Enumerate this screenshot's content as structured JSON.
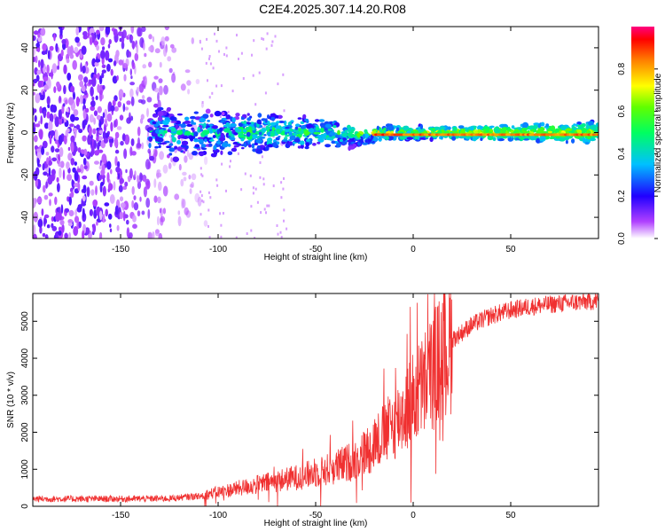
{
  "figure_title": "C2E4.2025.307.14.20.R08",
  "chart_data": [
    {
      "type": "heatmap",
      "title": "C2E4.2025.307.14.20.R08",
      "xlabel": "Height of straight line (km)",
      "ylabel": "Frequency (Hz)",
      "xlim": [
        -195,
        95
      ],
      "ylim": [
        -50,
        50
      ],
      "xticks": [
        -150,
        -100,
        -50,
        0,
        50
      ],
      "xtick_labels": [
        "-150",
        "-100",
        "-50",
        "0",
        "50"
      ],
      "yticks": [
        -40,
        -20,
        0,
        20,
        40
      ],
      "ytick_labels": [
        "-40",
        "-20",
        "0",
        "20",
        "40"
      ],
      "colorbar": {
        "label": "Normalized spectral amplitude",
        "range": [
          0,
          1
        ],
        "ticks": [
          0.0,
          0.2,
          0.4,
          0.6,
          0.8
        ],
        "tick_labels": [
          "0.0",
          "0.2",
          "0.4",
          "0.6",
          "0.8"
        ],
        "colormap": [
          "#ffffff",
          "#8b00ff",
          "#0000ff",
          "#00c8ff",
          "#00ff00",
          "#ffff00",
          "#ff8000",
          "#ff0000",
          "#ff0080"
        ]
      },
      "description": "Noise scattered at all frequencies for heights below about -100 km; energy concentrates near 0 Hz and grows to amplitude ~0.9 between about -30 km and 95 km."
    },
    {
      "type": "line",
      "xlabel": "Height of straight line (km)",
      "ylabel": "SNR (10 * v/v)",
      "xlim": [
        -195,
        95
      ],
      "ylim": [
        0,
        5750
      ],
      "xticks": [
        -150,
        -100,
        -50,
        0,
        50
      ],
      "xtick_labels": [
        "-150",
        "-100",
        "-50",
        "0",
        "50"
      ],
      "yticks": [
        0,
        1000,
        2000,
        3000,
        4000,
        5000
      ],
      "ytick_labels": [
        "0",
        "1000",
        "2000",
        "3000",
        "4000",
        "5000"
      ],
      "line_color": "#f03030",
      "series": [
        {
          "name": "SNR",
          "x": [
            -195,
            -150,
            -125,
            -110,
            -100,
            -90,
            -80,
            -70,
            -60,
            -50,
            -40,
            -35,
            -30,
            -25,
            -20,
            -15,
            -10,
            -5,
            0,
            5,
            10,
            15,
            20,
            30,
            40,
            50,
            60,
            70,
            80,
            95
          ],
          "y": [
            200,
            200,
            210,
            280,
            380,
            480,
            580,
            680,
            780,
            900,
            1050,
            1150,
            1250,
            1450,
            1700,
            1950,
            2200,
            2550,
            2900,
            3250,
            3650,
            4100,
            4500,
            4900,
            5150,
            5300,
            5400,
            5450,
            5500,
            5550
          ]
        }
      ]
    }
  ]
}
